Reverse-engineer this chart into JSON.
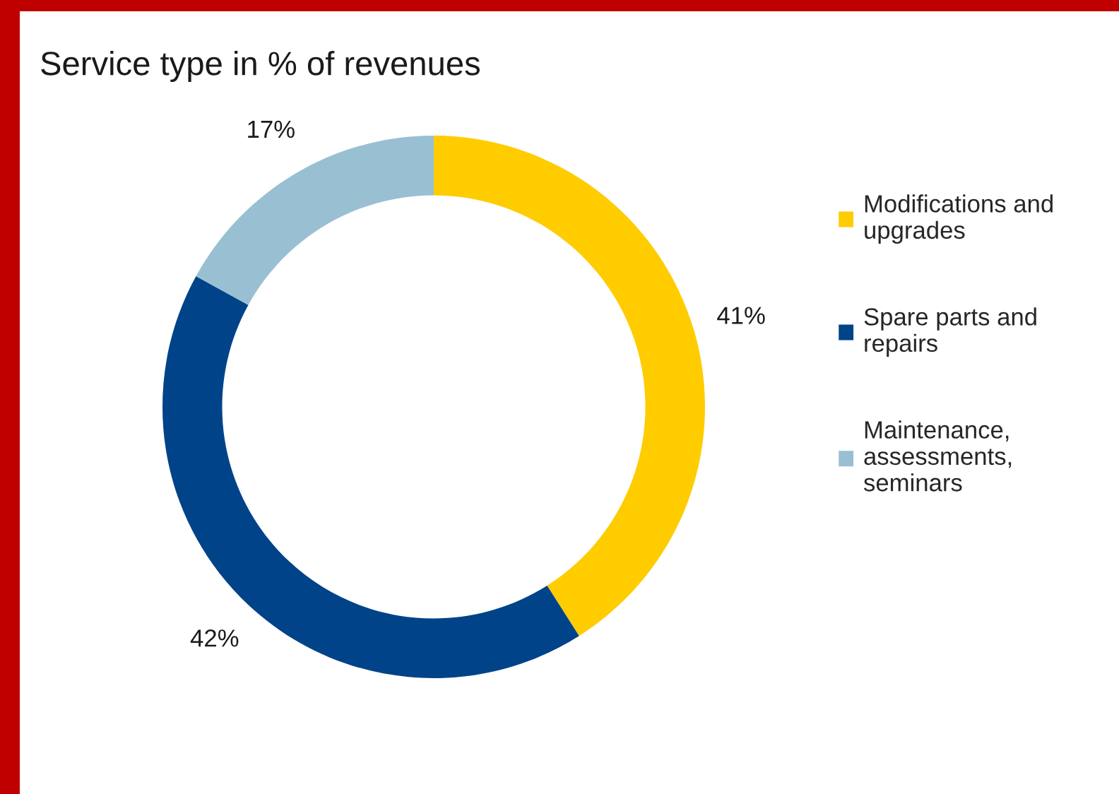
{
  "chart_data": {
    "type": "donut",
    "title": "Service type in % of revenues",
    "categories": [
      "Modifications and\nupgrades",
      "Spare parts and\nrepairs",
      "Maintenance,\nassessments,\nseminars"
    ],
    "values": [
      41,
      42,
      17
    ],
    "colors": [
      "#ffcc00",
      "#004389",
      "#99bfd2"
    ],
    "value_labels": [
      "41%",
      "42%",
      "17%"
    ],
    "legend": "right"
  }
}
